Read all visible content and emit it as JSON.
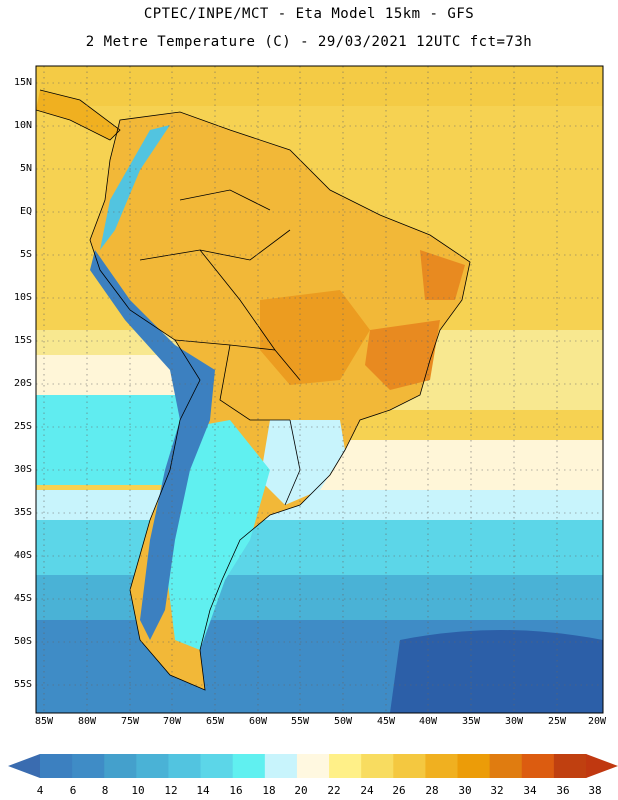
{
  "title": {
    "line1": "CPTEC/INPE/MCT -  Eta Model 15km - GFS",
    "line2": "2 Metre Temperature (C) - 29/03/2021 12UTC fct=73h"
  },
  "map": {
    "latitude_labels": [
      "15N",
      "10N",
      "5N",
      "EQ",
      "5S",
      "10S",
      "15S",
      "20S",
      "25S",
      "30S",
      "35S",
      "40S",
      "45S",
      "50S",
      "55S"
    ],
    "longitude_labels": [
      "85W",
      "80W",
      "75W",
      "70W",
      "65W",
      "60W",
      "55W",
      "50W",
      "45W",
      "40W",
      "35W",
      "30W",
      "25W",
      "20W"
    ]
  },
  "colorbar": {
    "labels": [
      "4",
      "6",
      "8",
      "10",
      "12",
      "14",
      "16",
      "18",
      "20",
      "22",
      "24",
      "26",
      "28",
      "30",
      "32",
      "34",
      "36",
      "38"
    ],
    "colors": [
      "#3c80c0",
      "#3f8cc6",
      "#44a0cc",
      "#4ab2d6",
      "#52c4e0",
      "#5cd6e8",
      "#60f0f0",
      "#c8f4fc",
      "#fff8e0",
      "#fff088",
      "#f8dc60",
      "#f4c840",
      "#f0b020",
      "#ec9c08",
      "#e07c10",
      "#dc5c10",
      "#c04010"
    ],
    "low_arrow_color": "#3a6cb0",
    "high_arrow_color": "#c03810"
  }
}
